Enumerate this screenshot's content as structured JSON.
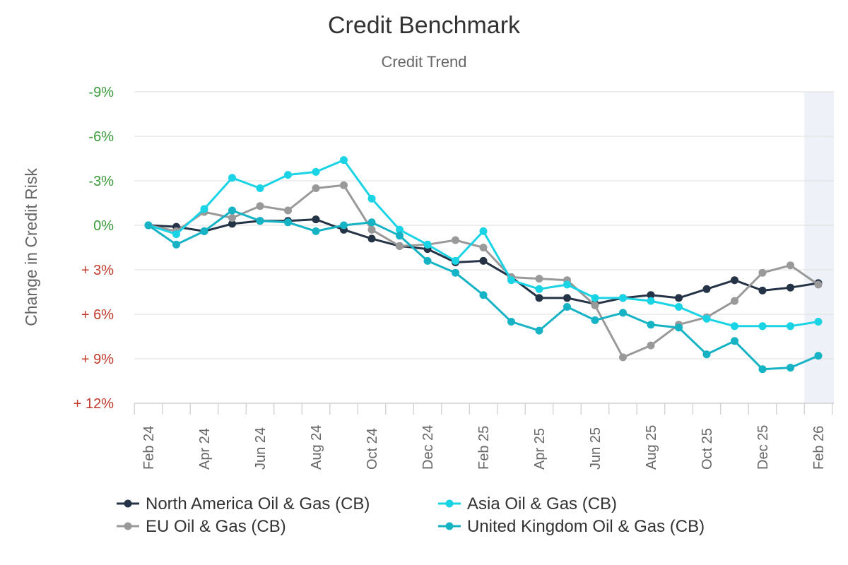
{
  "chart_data": {
    "type": "line",
    "title": "Credit Benchmark",
    "subtitle": "Credit Trend",
    "ylabel": "Change in Credit Risk",
    "xlabel": "",
    "ylim": [
      12,
      -9
    ],
    "yticks": [
      {
        "value": -9,
        "label": "-9%",
        "color": "#3a9a3a"
      },
      {
        "value": -6,
        "label": "-6%",
        "color": "#3a9a3a"
      },
      {
        "value": -3,
        "label": "-3%",
        "color": "#3a9a3a"
      },
      {
        "value": 0,
        "label": "0%",
        "color": "#3a9a3a"
      },
      {
        "value": 3,
        "label": "+ 3%",
        "color": "#c0392b"
      },
      {
        "value": 6,
        "label": "+ 6%",
        "color": "#c0392b"
      },
      {
        "value": 9,
        "label": "+ 9%",
        "color": "#c0392b"
      },
      {
        "value": 12,
        "label": "+ 12%",
        "color": "#c0392b"
      }
    ],
    "x": [
      "Feb 24",
      "Mar 24",
      "Apr 24",
      "May 24",
      "Jun 24",
      "Jul 24",
      "Aug 24",
      "Sep 24",
      "Oct 24",
      "Nov 24",
      "Dec 24",
      "Jan 25",
      "Feb 25",
      "Mar 25",
      "Apr 25",
      "May 25",
      "Jun 25",
      "Jul 25",
      "Aug 25",
      "Sep 25",
      "Oct 25",
      "Nov 25",
      "Dec 25",
      "Jan 26",
      "Feb 26"
    ],
    "xtick_labels": [
      {
        "index": 0,
        "label": "Feb 24"
      },
      {
        "index": 2,
        "label": "Apr 24"
      },
      {
        "index": 4,
        "label": "Jun 24"
      },
      {
        "index": 6,
        "label": "Aug 24"
      },
      {
        "index": 8,
        "label": "Oct 24"
      },
      {
        "index": 10,
        "label": "Dec 24"
      },
      {
        "index": 12,
        "label": "Feb 25"
      },
      {
        "index": 14,
        "label": "Apr 25"
      },
      {
        "index": 16,
        "label": "Jun 25"
      },
      {
        "index": 18,
        "label": "Aug 25"
      },
      {
        "index": 20,
        "label": "Oct 25"
      },
      {
        "index": 22,
        "label": "Dec 25"
      },
      {
        "index": 24,
        "label": "Feb 26"
      }
    ],
    "highlight_last_period": true,
    "highlight_color": "#eef1f7",
    "grid": true,
    "legend_position": "bottom",
    "series": [
      {
        "name": "North America Oil & Gas (CB)",
        "color": "#253347",
        "values": [
          0.0,
          0.1,
          0.4,
          -0.1,
          -0.3,
          -0.3,
          -0.4,
          0.3,
          0.9,
          1.4,
          1.6,
          2.5,
          2.4,
          3.5,
          4.9,
          4.9,
          5.3,
          4.9,
          4.7,
          4.9,
          4.3,
          3.7,
          4.4,
          4.2,
          3.9
        ]
      },
      {
        "name": "EU Oil & Gas (CB)",
        "color": "#999999",
        "values": [
          0.0,
          0.4,
          -0.9,
          -0.5,
          -1.3,
          -1.0,
          -2.5,
          -2.7,
          0.3,
          1.4,
          1.3,
          1.0,
          1.5,
          3.5,
          3.6,
          3.7,
          5.4,
          8.9,
          8.1,
          6.7,
          6.2,
          5.1,
          3.2,
          2.7,
          4.0
        ]
      },
      {
        "name": "Asia Oil & Gas (CB)",
        "color": "#1ad4e6",
        "values": [
          0.0,
          0.6,
          -1.1,
          -3.2,
          -2.5,
          -3.4,
          -3.6,
          -4.4,
          -1.8,
          0.3,
          1.3,
          2.4,
          0.4,
          3.7,
          4.3,
          4.0,
          4.9,
          4.9,
          5.1,
          5.5,
          6.3,
          6.8,
          6.8,
          6.8,
          6.5
        ]
      },
      {
        "name": "United Kingdom Oil & Gas (CB)",
        "color": "#16b3c5",
        "values": [
          0.0,
          1.3,
          0.4,
          -1.0,
          -0.3,
          -0.2,
          0.4,
          0.0,
          -0.2,
          0.7,
          2.4,
          3.2,
          4.7,
          6.5,
          7.1,
          5.5,
          6.4,
          5.9,
          6.7,
          6.9,
          8.7,
          7.8,
          9.7,
          9.6,
          8.8
        ]
      }
    ]
  }
}
